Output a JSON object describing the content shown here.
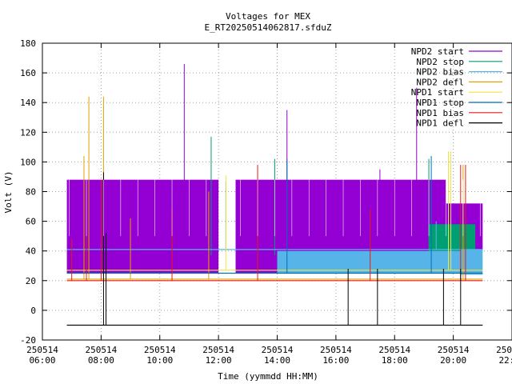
{
  "chart_data": {
    "type": "line",
    "title": "Voltages for MEX",
    "subtitle": "E_RT20250514062817.sfduZ",
    "xlabel": "Time (yymmdd HH:MM)",
    "ylabel": "Volt (V)",
    "ylim": [
      -20,
      180
    ],
    "yticks": [
      -20,
      0,
      20,
      40,
      60,
      80,
      100,
      120,
      140,
      160,
      180
    ],
    "xlim": [
      "2025-05-14 06:00",
      "2025-05-14 22:00"
    ],
    "xticks": [
      {
        "t": "2025-05-14 06:00",
        "date": "250514",
        "time": "06:00"
      },
      {
        "t": "2025-05-14 08:00",
        "date": "250514",
        "time": "08:00"
      },
      {
        "t": "2025-05-14 10:00",
        "date": "250514",
        "time": "10:00"
      },
      {
        "t": "2025-05-14 12:00",
        "date": "250514",
        "time": "12:00"
      },
      {
        "t": "2025-05-14 14:00",
        "date": "250514",
        "time": "14:00"
      },
      {
        "t": "2025-05-14 16:00",
        "date": "250514",
        "time": "16:00"
      },
      {
        "t": "2025-05-14 18:00",
        "date": "250514",
        "time": "18:00"
      },
      {
        "t": "2025-05-14 20:00",
        "date": "250514",
        "time": "20:00"
      },
      {
        "t": "2025-05-14 22:00",
        "date": "250514",
        "time": "22:00"
      }
    ],
    "grid": true,
    "legend_position": "top-right",
    "series": [
      {
        "name": "NPD2 start",
        "color": "#9400d3",
        "bands": [
          {
            "from": "2025-05-14 06:50",
            "to": "2025-05-14 12:00",
            "low": 25,
            "high": 88
          },
          {
            "from": "2025-05-14 12:35",
            "to": "2025-05-14 19:45",
            "low": 25,
            "high": 88
          },
          {
            "from": "2025-05-14 19:45",
            "to": "2025-05-14 21:00",
            "low": 40,
            "high": 72
          }
        ],
        "spikes": [
          {
            "t": "2025-05-14 10:50",
            "v": 166
          },
          {
            "t": "2025-05-14 14:20",
            "v": 135
          },
          {
            "t": "2025-05-14 18:45",
            "v": 150
          },
          {
            "t": "2025-05-14 17:30",
            "v": 95
          }
        ]
      },
      {
        "name": "NPD2 stop",
        "color": "#009e73",
        "bands": [
          {
            "from": "2025-05-14 19:10",
            "to": "2025-05-14 20:45",
            "low": 37,
            "high": 58
          }
        ],
        "spikes": [
          {
            "t": "2025-05-14 11:45",
            "v": 117
          },
          {
            "t": "2025-05-14 13:55",
            "v": 102
          },
          {
            "t": "2025-05-14 19:10",
            "v": 102
          }
        ]
      },
      {
        "name": "NPD2 bias",
        "color": "#56b4e9",
        "bands": [
          {
            "from": "2025-05-14 14:00",
            "to": "2025-05-14 20:15",
            "low": 25,
            "high": 40
          },
          {
            "from": "2025-05-14 20:15",
            "to": "2025-05-14 21:00",
            "low": 24,
            "high": 41
          }
        ],
        "levels": [
          {
            "from": "2025-05-14 06:50",
            "to": "2025-05-14 21:00",
            "v": 41
          }
        ],
        "spikes": [
          {
            "t": "2025-05-14 12:15",
            "v": 87
          },
          {
            "t": "2025-05-14 19:25",
            "v": 60
          }
        ]
      },
      {
        "name": "NPD2 defl",
        "color": "#e69f00",
        "levels": [
          {
            "from": "2025-05-14 06:50",
            "to": "2025-05-14 21:00",
            "v": 21
          }
        ],
        "spikes": [
          {
            "t": "2025-05-14 07:25",
            "v": 104
          },
          {
            "t": "2025-05-14 07:35",
            "v": 144
          },
          {
            "t": "2025-05-14 08:05",
            "v": 144
          },
          {
            "t": "2025-05-14 09:00",
            "v": 62
          },
          {
            "t": "2025-05-14 11:40",
            "v": 80
          },
          {
            "t": "2025-05-14 20:20",
            "v": 98
          }
        ]
      },
      {
        "name": "NPD1 start",
        "color": "#f0e442",
        "levels": [
          {
            "from": "2025-05-14 06:50",
            "to": "2025-05-14 21:00",
            "v": 27
          }
        ],
        "spikes": [
          {
            "t": "2025-05-14 12:15",
            "v": 91
          },
          {
            "t": "2025-05-14 19:50",
            "v": 107
          },
          {
            "t": "2025-05-14 19:55",
            "v": 107
          }
        ]
      },
      {
        "name": "NPD1 stop",
        "color": "#0072b2",
        "levels": [
          {
            "from": "2025-05-14 06:50",
            "to": "2025-05-14 21:00",
            "v": 25
          }
        ],
        "spikes": [
          {
            "t": "2025-05-14 14:20",
            "v": 102
          },
          {
            "t": "2025-05-14 19:15",
            "v": 104
          }
        ]
      },
      {
        "name": "NPD1 bias",
        "color": "#e51e10",
        "levels": [
          {
            "from": "2025-05-14 06:50",
            "to": "2025-05-14 21:00",
            "v": 20
          }
        ],
        "spikes": [
          {
            "t": "2025-05-14 07:00",
            "v": 48
          },
          {
            "t": "2025-05-14 07:30",
            "v": 85
          },
          {
            "t": "2025-05-14 08:00",
            "v": 88
          },
          {
            "t": "2025-05-14 10:25",
            "v": 68
          },
          {
            "t": "2025-05-14 13:20",
            "v": 98
          },
          {
            "t": "2025-05-14 17:10",
            "v": 68
          },
          {
            "t": "2025-05-14 20:15",
            "v": 98
          },
          {
            "t": "2025-05-14 20:25",
            "v": 98
          }
        ]
      },
      {
        "name": "NPD1 defl",
        "color": "#000000",
        "levels": [
          {
            "from": "2025-05-14 06:50",
            "to": "2025-05-14 21:00",
            "v": -10
          }
        ],
        "spikes": [
          {
            "t": "2025-05-14 08:05",
            "v": 93,
            "low": -10
          },
          {
            "t": "2025-05-14 08:10",
            "v": 52,
            "low": -10
          },
          {
            "t": "2025-05-14 16:25",
            "v": 28,
            "low": -10
          },
          {
            "t": "2025-05-14 17:25",
            "v": 28,
            "low": -10
          },
          {
            "t": "2025-05-14 19:40",
            "v": 28,
            "low": -10
          },
          {
            "t": "2025-05-14 20:15",
            "v": 28,
            "low": -10
          }
        ]
      }
    ]
  }
}
